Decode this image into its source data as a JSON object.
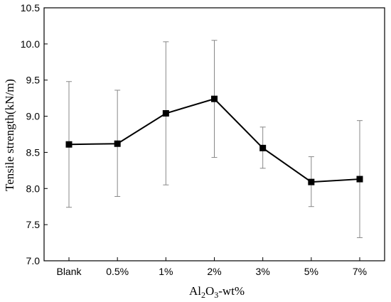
{
  "chart_data": {
    "type": "line",
    "title": "",
    "xlabel": "Al2O3-wt%",
    "xlabel_parts": {
      "a": "Al",
      "b": "2",
      "c": "O",
      "d": "3",
      "e": "-wt%"
    },
    "ylabel": "Tensile strength(kN/m)",
    "categories": [
      "Blank",
      "0.5%",
      "1%",
      "2%",
      "3%",
      "5%",
      "7%"
    ],
    "series": [
      {
        "values": [
          8.61,
          8.62,
          9.04,
          9.24,
          8.56,
          8.09,
          8.13
        ],
        "error_low": [
          7.74,
          7.89,
          8.05,
          8.43,
          8.28,
          7.75,
          7.32
        ],
        "error_high": [
          9.48,
          9.36,
          10.03,
          10.05,
          8.85,
          8.44,
          8.94
        ],
        "color": "#000000",
        "marker": "square"
      }
    ],
    "ylim": [
      7.0,
      10.5
    ],
    "yticks": [
      "7.0",
      "7.5",
      "8.0",
      "8.5",
      "9.0",
      "9.5",
      "10.0",
      "10.5"
    ],
    "grid": false,
    "legend": "none"
  }
}
